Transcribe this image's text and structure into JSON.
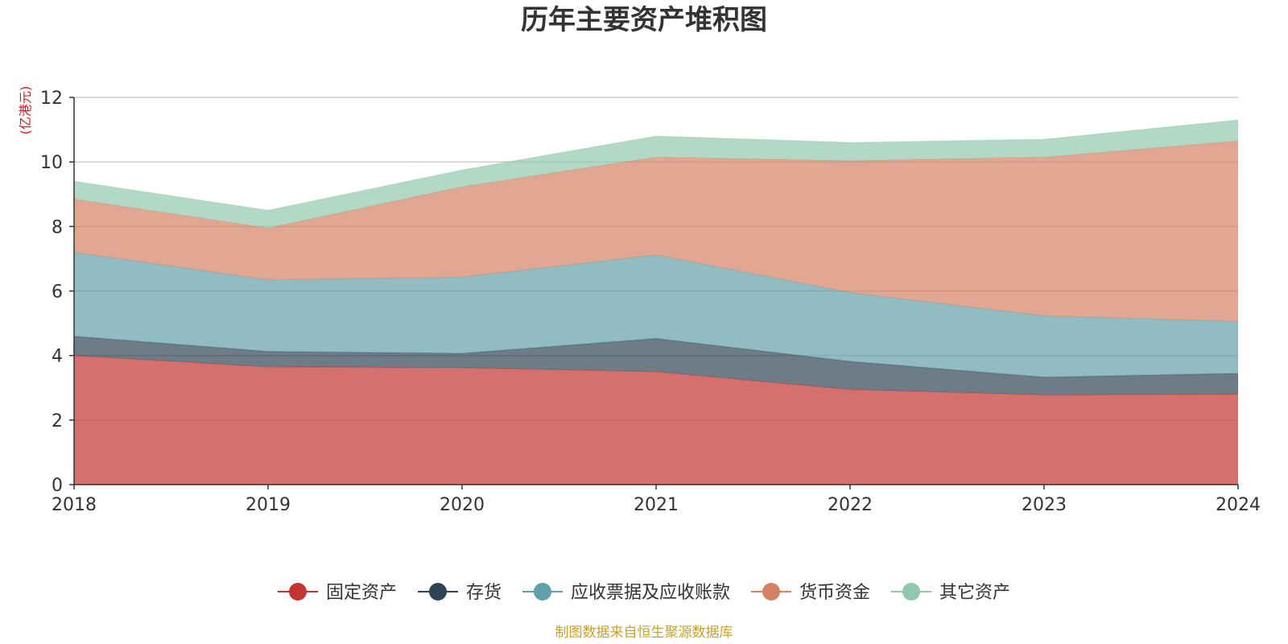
{
  "chart_data": {
    "type": "area",
    "stacked": true,
    "title": "历年主要资产堆积图",
    "unit_label": "(亿港元)",
    "x": [
      "2018",
      "2019",
      "2020",
      "2021",
      "2022",
      "2023",
      "2024"
    ],
    "ylim": [
      0,
      12
    ],
    "yticks": [
      "0",
      "2",
      "4",
      "6",
      "8",
      "10",
      "12"
    ],
    "grid": true,
    "legend_position": "bottom",
    "series": [
      {
        "name": "固定资产",
        "color": "#c23531",
        "values": [
          4.0,
          3.65,
          3.62,
          3.5,
          2.95,
          2.78,
          2.8
        ]
      },
      {
        "name": "存货",
        "color": "#2f4554",
        "values": [
          0.6,
          0.48,
          0.45,
          1.03,
          0.87,
          0.55,
          0.65
        ]
      },
      {
        "name": "应收票据及应收账款",
        "color": "#61a0a8",
        "values": [
          2.6,
          2.22,
          2.36,
          2.59,
          2.13,
          1.9,
          1.61
        ]
      },
      {
        "name": "货币资金",
        "color": "#d48265",
        "values": [
          1.65,
          1.6,
          2.8,
          3.03,
          4.09,
          4.92,
          5.59
        ]
      },
      {
        "name": "其它资产",
        "color": "#91c7ae",
        "values": [
          0.55,
          0.55,
          0.52,
          0.65,
          0.56,
          0.55,
          0.65
        ]
      }
    ]
  },
  "footer": {
    "source": "制图数据来自恒生聚源数据库"
  }
}
